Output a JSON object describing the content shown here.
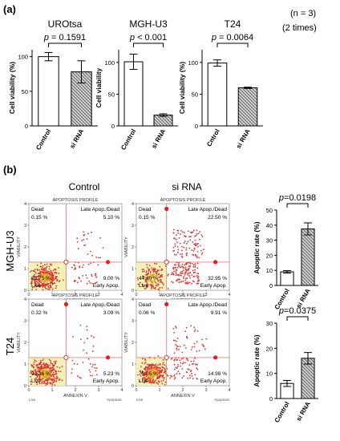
{
  "panel_a_label": "(a)",
  "panel_b_label": "(b)",
  "note_n": "(n = 3)",
  "note_times": "(2 times)",
  "p_prefix": "p",
  "chart_data": [
    {
      "type": "bar",
      "title": "UROtsa",
      "categories": [
        "Control",
        "si RNA"
      ],
      "values": [
        100,
        78
      ],
      "errors": [
        6,
        16
      ],
      "ylabel": "Cell viability (%)",
      "ylim": [
        0,
        110
      ],
      "yticks": [
        0,
        50,
        100
      ],
      "p_text": " = 0.1591"
    },
    {
      "type": "bar",
      "title": "MGH-U3",
      "categories": [
        "Control",
        "si RNA"
      ],
      "values": [
        101,
        17
      ],
      "errors": [
        12,
        2
      ],
      "ylabel": "Cell viability",
      "ylim": [
        0,
        120
      ],
      "yticks": [
        0,
        50,
        100
      ],
      "p_text": " < 0.001"
    },
    {
      "type": "bar",
      "title": "T24",
      "categories": [
        "Cntrol",
        "si RNA"
      ],
      "values": [
        99,
        60
      ],
      "errors": [
        5,
        1
      ],
      "ylabel": "Cell viability (%)",
      "ylim": [
        0,
        120
      ],
      "yticks": [
        0,
        50,
        100
      ],
      "p_text": " = 0.0064"
    },
    {
      "type": "bar",
      "categories": [
        "Control",
        "si RNA"
      ],
      "values": [
        9,
        37.5
      ],
      "errors": [
        0.8,
        4
      ],
      "ylabel": "Apoptic rate (%)",
      "ylim": [
        0,
        50
      ],
      "yticks": [
        0,
        10,
        20,
        30,
        40,
        50
      ],
      "p_text": "=0.0198"
    },
    {
      "type": "bar",
      "categories": [
        "Control",
        "si RNA"
      ],
      "values": [
        6,
        16
      ],
      "errors": [
        1.2,
        2.3
      ],
      "ylabel": "Apoptic rate (%)",
      "ylim": [
        0,
        30
      ],
      "yticks": [
        0,
        10,
        20,
        30
      ],
      "p_text": "=0.0375"
    },
    {
      "type": "scatter",
      "column": "Control",
      "row": "MGH-U3",
      "title": "APOPTOSIS PROFILE",
      "xlabel": "ANNEXIN V",
      "ylabel": "VIABILITY",
      "xticks": [
        "0",
        "1",
        "2",
        "3",
        "4"
      ],
      "yticks": [
        "0",
        "1",
        "2",
        "3",
        "4"
      ],
      "gate": [
        1.6,
        1.3
      ],
      "quadrants": {
        "dead": "Dead",
        "late": "Late Apop./Dead",
        "live": "Live",
        "early": "Early Apop."
      },
      "percents": {
        "dead": "0.15 %",
        "late": "5.10 %",
        "live": "85.75 %",
        "early": "9.00 %"
      },
      "axis_left": "Live",
      "axis_right": "Apoptotic"
    },
    {
      "type": "scatter",
      "column": "si RNA",
      "row": "MGH-U3",
      "title": "APOPTOSIS PROFILE",
      "xlabel": "ANNEXIN V",
      "ylabel": "VIABILITY",
      "xticks": [
        "0",
        "1",
        "2",
        "3",
        "4"
      ],
      "yticks": [
        "0",
        "1",
        "2",
        "3",
        "4"
      ],
      "gate": [
        1.3,
        1.3
      ],
      "quadrants": {
        "dead": "Dead",
        "late": "Late Apop./Dead",
        "live": "Live",
        "early": "Early Apop."
      },
      "percents": {
        "dead": "0.15 %",
        "late": "22.50 %",
        "live": "44.40 %",
        "early": "32.95 %"
      },
      "axis_left": "Live",
      "axis_right": "Apoptotic"
    },
    {
      "type": "scatter",
      "column": "Control",
      "row": "T24",
      "title": "APOPTOSIS PROFILE",
      "xlabel": "ANNEXIN V",
      "ylabel": "VIABILITY",
      "xticks": [
        "0",
        "1",
        "2",
        "3",
        "4"
      ],
      "yticks": [
        "0",
        "1",
        "2",
        "3",
        "4"
      ],
      "gate": [
        1.6,
        1.3
      ],
      "quadrants": {
        "dead": "Dead",
        "late": "Late Apop./Dead",
        "live": "Live",
        "early": "Early Apop."
      },
      "percents": {
        "dead": "0.32 %",
        "late": "3.09 %",
        "live": "91.36 %",
        "early": "5.23 %"
      },
      "axis_left": "Live",
      "axis_right": "Apoptotic"
    },
    {
      "type": "scatter",
      "column": "si RNA",
      "row": "T24",
      "title": "APOPTOSIS PROFILE",
      "xlabel": "ANNEXIN V",
      "ylabel": "VIABILITY",
      "xticks": [
        "0",
        "1",
        "2",
        "3",
        "4"
      ],
      "yticks": [
        "0",
        "1",
        "2",
        "3",
        "4"
      ],
      "gate": [
        1.3,
        1.3
      ],
      "quadrants": {
        "dead": "Dead",
        "late": "Late Apop./Dead",
        "live": "Live",
        "early": "Early Apop."
      },
      "percents": {
        "dead": "0.06 %",
        "late": "9.91 %",
        "live": "75.05 %",
        "early": "14.98 %"
      },
      "axis_left": "Live",
      "axis_right": "Apoptotic"
    }
  ],
  "column_headers": [
    "Control",
    "si RNA"
  ],
  "row_labels": [
    "MGH-U3",
    "T24"
  ],
  "colors": {
    "bar_outline": "#000000",
    "bar_fill": "#ffffff",
    "hatch": "#666666",
    "flow_dot": "#e03030",
    "live_zone": "#f2f2b8",
    "gate_line": "#e08080",
    "marker": "#dd2222"
  }
}
